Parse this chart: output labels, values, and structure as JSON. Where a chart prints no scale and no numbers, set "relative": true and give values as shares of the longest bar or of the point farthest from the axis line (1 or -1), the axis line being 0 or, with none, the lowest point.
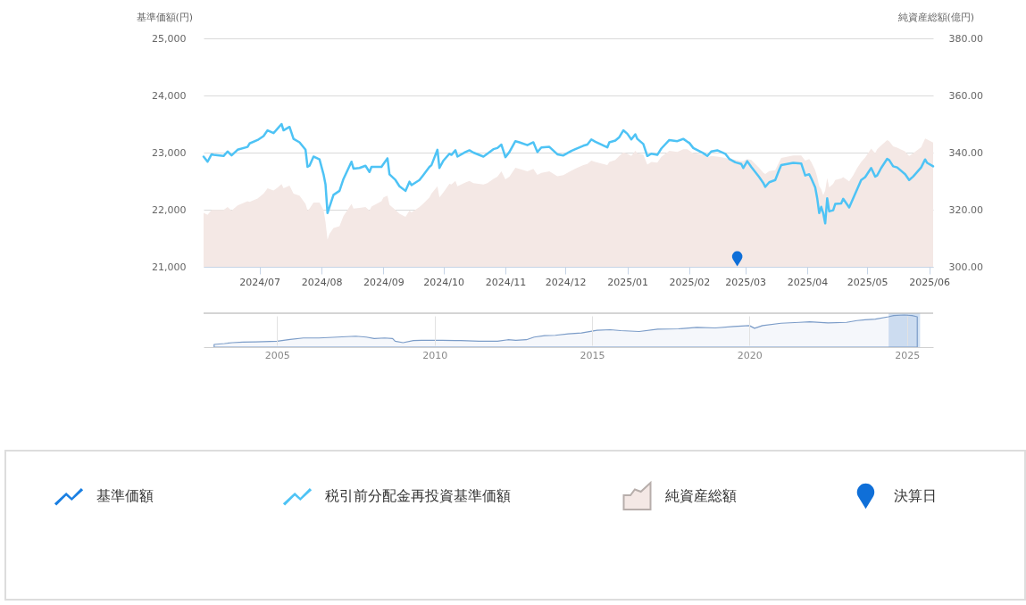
{
  "chart_data": [
    {
      "type": "line",
      "ylabel": "基準価額(円)",
      "y2label": "純資産総額(億円)",
      "x": [
        "2024-06-03",
        "2024-06-05",
        "2024-06-07",
        "2024-06-08",
        "2024-06-13",
        "2024-06-15",
        "2024-06-17",
        "2024-06-20",
        "2024-06-25",
        "2024-06-26",
        "2024-06-30",
        "2024-07-03",
        "2024-07-05",
        "2024-07-08",
        "2024-07-10",
        "2024-07-12",
        "2024-07-13",
        "2024-07-16",
        "2024-07-18",
        "2024-07-21",
        "2024-07-24",
        "2024-07-25",
        "2024-07-26",
        "2024-07-28",
        "2024-07-31",
        "2024-08-02",
        "2024-08-03",
        "2024-08-04",
        "2024-08-05",
        "2024-08-07",
        "2024-08-10",
        "2024-08-12",
        "2024-08-16",
        "2024-08-17",
        "2024-08-20",
        "2024-08-23",
        "2024-08-25",
        "2024-08-26",
        "2024-08-31",
        "2024-09-01",
        "2024-09-03",
        "2024-09-04",
        "2024-09-07",
        "2024-09-09",
        "2024-09-12",
        "2024-09-14",
        "2024-09-15",
        "2024-09-19",
        "2024-09-21",
        "2024-09-24",
        "2024-09-25",
        "2024-09-28",
        "2024-09-29",
        "2024-10-01",
        "2024-10-04",
        "2024-10-05",
        "2024-10-07",
        "2024-10-08",
        "2024-10-12",
        "2024-10-14",
        "2024-10-16",
        "2024-10-21",
        "2024-10-23",
        "2024-10-26",
        "2024-10-28",
        "2024-10-30",
        "2024-11-01",
        "2024-11-03",
        "2024-11-06",
        "2024-11-08",
        "2024-11-12",
        "2024-11-15",
        "2024-11-17",
        "2024-11-19",
        "2024-11-23",
        "2024-11-27",
        "2024-11-30",
        "2024-12-04",
        "2024-12-06",
        "2024-12-10",
        "2024-12-12",
        "2024-12-14",
        "2024-12-16",
        "2024-12-22",
        "2024-12-23",
        "2024-12-26",
        "2024-12-28",
        "2024-12-30",
        "2025-01-01",
        "2025-01-03",
        "2025-01-05",
        "2025-01-06",
        "2025-01-09",
        "2025-01-11",
        "2025-01-13",
        "2025-01-16",
        "2025-01-18",
        "2025-01-22",
        "2025-01-26",
        "2025-01-29",
        "2025-01-31",
        "2025-02-01",
        "2025-02-03",
        "2025-02-08",
        "2025-02-10",
        "2025-02-12",
        "2025-02-15",
        "2025-02-19",
        "2025-02-21",
        "2025-02-24",
        "2025-02-27",
        "2025-02-28",
        "2025-03-02",
        "2025-03-04",
        "2025-03-08",
        "2025-03-10",
        "2025-03-11",
        "2025-03-13",
        "2025-03-16",
        "2025-03-18",
        "2025-03-19",
        "2025-03-25",
        "2025-03-29",
        "2025-03-31",
        "2025-04-02",
        "2025-04-03",
        "2025-04-05",
        "2025-04-06",
        "2025-04-07",
        "2025-04-08",
        "2025-04-09",
        "2025-04-10",
        "2025-04-11",
        "2025-04-12",
        "2025-04-14",
        "2025-04-15",
        "2025-04-18",
        "2025-04-19",
        "2025-04-22",
        "2025-04-24",
        "2025-04-26",
        "2025-04-28",
        "2025-04-30",
        "2025-05-03",
        "2025-05-05",
        "2025-05-06",
        "2025-05-08",
        "2025-05-11",
        "2025-05-12",
        "2025-05-14",
        "2025-05-16",
        "2025-05-20",
        "2025-05-22",
        "2025-05-24",
        "2025-05-28",
        "2025-05-30",
        "2025-05-31",
        "2025-06-03"
      ],
      "xlim": [
        "2024-06-03",
        "2025-06-03"
      ],
      "xticks": [
        {
          "value": "2024-07",
          "label": "2024/07"
        },
        {
          "value": "2024-08",
          "label": "2024/08"
        },
        {
          "value": "2024-09",
          "label": "2024/09"
        },
        {
          "value": "2024-10",
          "label": "2024/10"
        },
        {
          "value": "2024-11",
          "label": "2024/11"
        },
        {
          "value": "2024-12",
          "label": "2024/12"
        },
        {
          "value": "2025-01",
          "label": "2025/01"
        },
        {
          "value": "2025-02",
          "label": "2025/02"
        },
        {
          "value": "2025-03",
          "label": "2025/03"
        },
        {
          "value": "2025-04",
          "label": "2025/04"
        },
        {
          "value": "2025-05",
          "label": "2025/05"
        },
        {
          "value": "2025-06",
          "label": "2025/06"
        }
      ],
      "ylim": [
        21000,
        25000
      ],
      "yticks": [
        {
          "value": 21000,
          "label": "21,000"
        },
        {
          "value": 22000,
          "label": "22,000"
        },
        {
          "value": 23000,
          "label": "23,000"
        },
        {
          "value": 24000,
          "label": "24,000"
        },
        {
          "value": 25000,
          "label": "25,000"
        }
      ],
      "y2lim": [
        300,
        380
      ],
      "y2ticks": [
        {
          "value": 300,
          "label": "300.00"
        },
        {
          "value": 320,
          "label": "320.00"
        },
        {
          "value": 340,
          "label": "340.00"
        },
        {
          "value": 360,
          "label": "360.00"
        },
        {
          "value": 380,
          "label": "380.00"
        }
      ],
      "grid": "y",
      "legend": "bottom",
      "series": [
        {
          "name": "基準価額",
          "type": "line",
          "color": "#1a7fe2",
          "values": [
            null,
            null,
            null,
            null,
            null,
            null,
            null,
            null,
            null,
            null,
            null,
            null,
            null,
            null,
            null,
            null,
            null,
            null,
            null,
            null,
            null,
            null,
            null,
            null,
            null,
            null,
            null,
            null,
            null,
            null,
            null,
            null,
            null,
            null,
            null,
            null,
            null,
            null,
            null,
            null,
            null,
            null,
            null,
            null,
            null,
            null,
            null,
            null,
            null,
            null,
            null,
            null,
            null,
            null,
            null,
            null,
            null,
            null,
            null,
            null,
            null,
            null,
            null,
            null,
            null,
            null,
            null,
            null,
            null,
            null,
            null,
            null,
            null,
            null,
            null,
            null,
            null,
            null,
            null,
            null,
            null,
            null,
            null,
            null,
            null,
            null,
            null,
            null,
            null,
            null,
            null,
            null,
            null,
            null,
            null,
            null,
            null,
            null,
            null,
            null,
            null,
            null,
            null,
            null,
            null,
            null,
            null,
            null,
            null,
            null,
            null,
            null,
            null,
            null,
            null,
            null,
            null,
            null,
            null,
            null,
            null,
            null,
            null,
            null,
            null,
            null,
            null,
            null,
            null,
            null,
            null,
            null,
            null,
            null,
            null,
            null,
            null,
            null,
            null,
            null,
            null,
            null,
            null,
            null,
            null,
            null,
            null,
            null,
            null,
            null,
            null,
            null,
            null,
            null,
            null,
            null,
            null,
            null
          ]
        },
        {
          "name": "税引前分配金再投資基準価額",
          "type": "line",
          "color": "#4ec3f5",
          "values": [
            22930,
            22840,
            22970,
            22960,
            22940,
            23020,
            22950,
            23050,
            23100,
            23160,
            23220,
            23290,
            23390,
            23340,
            23420,
            23500,
            23390,
            23450,
            23240,
            23180,
            23050,
            22750,
            22770,
            22930,
            22880,
            22620,
            22440,
            21940,
            22050,
            22260,
            22330,
            22540,
            22840,
            22720,
            22730,
            22770,
            22660,
            22750,
            22750,
            22800,
            22900,
            22620,
            22520,
            22410,
            22330,
            22490,
            22430,
            22520,
            22610,
            22750,
            22780,
            23050,
            22730,
            22860,
            22980,
            22960,
            23040,
            22930,
            23010,
            23040,
            23000,
            22930,
            22980,
            23060,
            23080,
            23140,
            22920,
            23010,
            23200,
            23180,
            23130,
            23180,
            23010,
            23090,
            23100,
            22970,
            22950,
            23030,
            23060,
            23120,
            23140,
            23230,
            23190,
            23090,
            23180,
            23210,
            23270,
            23390,
            23330,
            23230,
            23320,
            23240,
            23150,
            22940,
            22980,
            22960,
            23070,
            23220,
            23200,
            23240,
            23190,
            23170,
            23080,
            22990,
            22940,
            23020,
            23040,
            22980,
            22890,
            22830,
            22800,
            22730,
            22850,
            22750,
            22570,
            22470,
            22400,
            22480,
            22520,
            22700,
            22780,
            22820,
            22810,
            22600,
            22620,
            22550,
            22390,
            22200,
            21940,
            22050,
            21940,
            21760,
            22200,
            21970,
            21990,
            22100,
            22110,
            22190,
            22040,
            22200,
            22360,
            22520,
            22570,
            22730,
            22580,
            22600,
            22730,
            22890,
            22870,
            22760,
            22740,
            22620,
            22520,
            22580,
            22740,
            22880,
            22820,
            22760
          ]
        },
        {
          "name": "純資産総額",
          "type": "area",
          "axis": "y2",
          "color": "#f4e8e5",
          "values": [
            318.9,
            318.2,
            319.9,
            319.9,
            319.9,
            320.9,
            319.7,
            321.5,
            323.0,
            322.7,
            323.9,
            325.6,
            327.5,
            326.7,
            327.7,
            329.0,
            327.5,
            328.4,
            325.6,
            324.9,
            322.0,
            319.7,
            320.4,
            322.5,
            322.5,
            319.9,
            315.7,
            309.5,
            311.6,
            313.6,
            314.2,
            317.8,
            322.0,
            320.4,
            320.6,
            320.9,
            319.7,
            321.1,
            323.0,
            324.3,
            324.9,
            321.7,
            319.9,
            318.6,
            317.5,
            319.7,
            319.1,
            320.9,
            322.2,
            324.3,
            325.6,
            328.2,
            324.3,
            326.1,
            329.1,
            328.8,
            330.1,
            328.2,
            329.5,
            330.1,
            329.3,
            328.8,
            329.3,
            330.8,
            331.6,
            333.4,
            330.6,
            331.6,
            334.7,
            334.3,
            333.4,
            334.3,
            332.2,
            332.9,
            333.4,
            331.7,
            332.1,
            333.7,
            334.4,
            335.6,
            336.0,
            337.2,
            336.7,
            335.6,
            336.7,
            337.4,
            338.8,
            340.1,
            339.6,
            338.8,
            340.6,
            339.8,
            339.3,
            335.8,
            336.7,
            336.5,
            338.5,
            340.6,
            340.2,
            341.2,
            341.2,
            340.7,
            339.8,
            339.3,
            338.3,
            338.8,
            338.6,
            338.1,
            337.7,
            337.5,
            337.0,
            337.0,
            337.7,
            337.4,
            334.6,
            333.0,
            332.5,
            333.5,
            333.8,
            336.7,
            338.1,
            339.0,
            339.0,
            337.2,
            337.7,
            336.7,
            333.8,
            331.4,
            328.3,
            327.2,
            325.1,
            326.7,
            331.1,
            327.8,
            329.1,
            330.4,
            330.9,
            331.4,
            329.9,
            332.0,
            334.6,
            336.7,
            338.3,
            341.4,
            339.8,
            341.2,
            342.5,
            344.4,
            344.0,
            342.2,
            341.7,
            340.4,
            338.8,
            339.8,
            341.9,
            344.9,
            344.6,
            343.5
          ]
        },
        {
          "name": "決算日",
          "type": "scatter",
          "color": "#0f6fd8",
          "x": [
            "2025-02-25"
          ],
          "values": [
            21140
          ]
        }
      ]
    },
    {
      "type": "area",
      "relative": true,
      "color": "#7b9cc8",
      "grid": "x",
      "x": [
        "2003-01",
        "2003-05",
        "2003-08",
        "2003-12",
        "2004-05",
        "2005-01",
        "2005-06",
        "2005-11",
        "2006-05",
        "2006-12",
        "2007-07",
        "2007-11",
        "2008-02",
        "2008-06",
        "2008-09",
        "2008-10",
        "2009-01",
        "2009-05",
        "2009-08",
        "2010-04",
        "2010-11",
        "2011-06",
        "2012-01",
        "2012-05",
        "2012-08",
        "2012-12",
        "2013-03",
        "2013-07",
        "2013-11",
        "2014-04",
        "2014-09",
        "2015-03",
        "2015-08",
        "2015-12",
        "2016-07",
        "2017-02",
        "2017-10",
        "2018-05",
        "2018-12",
        "2019-07",
        "2020-01",
        "2020-03",
        "2020-06",
        "2021-01",
        "2021-08",
        "2021-12",
        "2022-07",
        "2023-02",
        "2023-06",
        "2023-09",
        "2024-01",
        "2024-06",
        "2024-08",
        "2024-12",
        "2025-03",
        "2025-05"
      ],
      "values": [
        0,
        0.03,
        0.06,
        0.08,
        0.09,
        0.11,
        0.17,
        0.22,
        0.22,
        0.25,
        0.28,
        0.25,
        0.2,
        0.22,
        0.2,
        0.11,
        0.06,
        0.13,
        0.14,
        0.14,
        0.13,
        0.11,
        0.11,
        0.16,
        0.14,
        0.16,
        0.25,
        0.3,
        0.31,
        0.36,
        0.39,
        0.48,
        0.5,
        0.47,
        0.44,
        0.52,
        0.53,
        0.58,
        0.56,
        0.61,
        0.64,
        0.55,
        0.64,
        0.72,
        0.75,
        0.77,
        0.73,
        0.75,
        0.81,
        0.84,
        0.86,
        0.94,
        0.98,
        1,
        0.98,
        0.94
      ],
      "xlim": [
        "2002-09",
        "2025-11"
      ],
      "xticks": [
        "2005",
        "2010",
        "2015",
        "2020",
        "2025"
      ],
      "bands": [
        {
          "axis": "x",
          "from": "2024-06-03",
          "to": "2025-06-03",
          "color": "#d3e2f4"
        }
      ]
    }
  ]
}
